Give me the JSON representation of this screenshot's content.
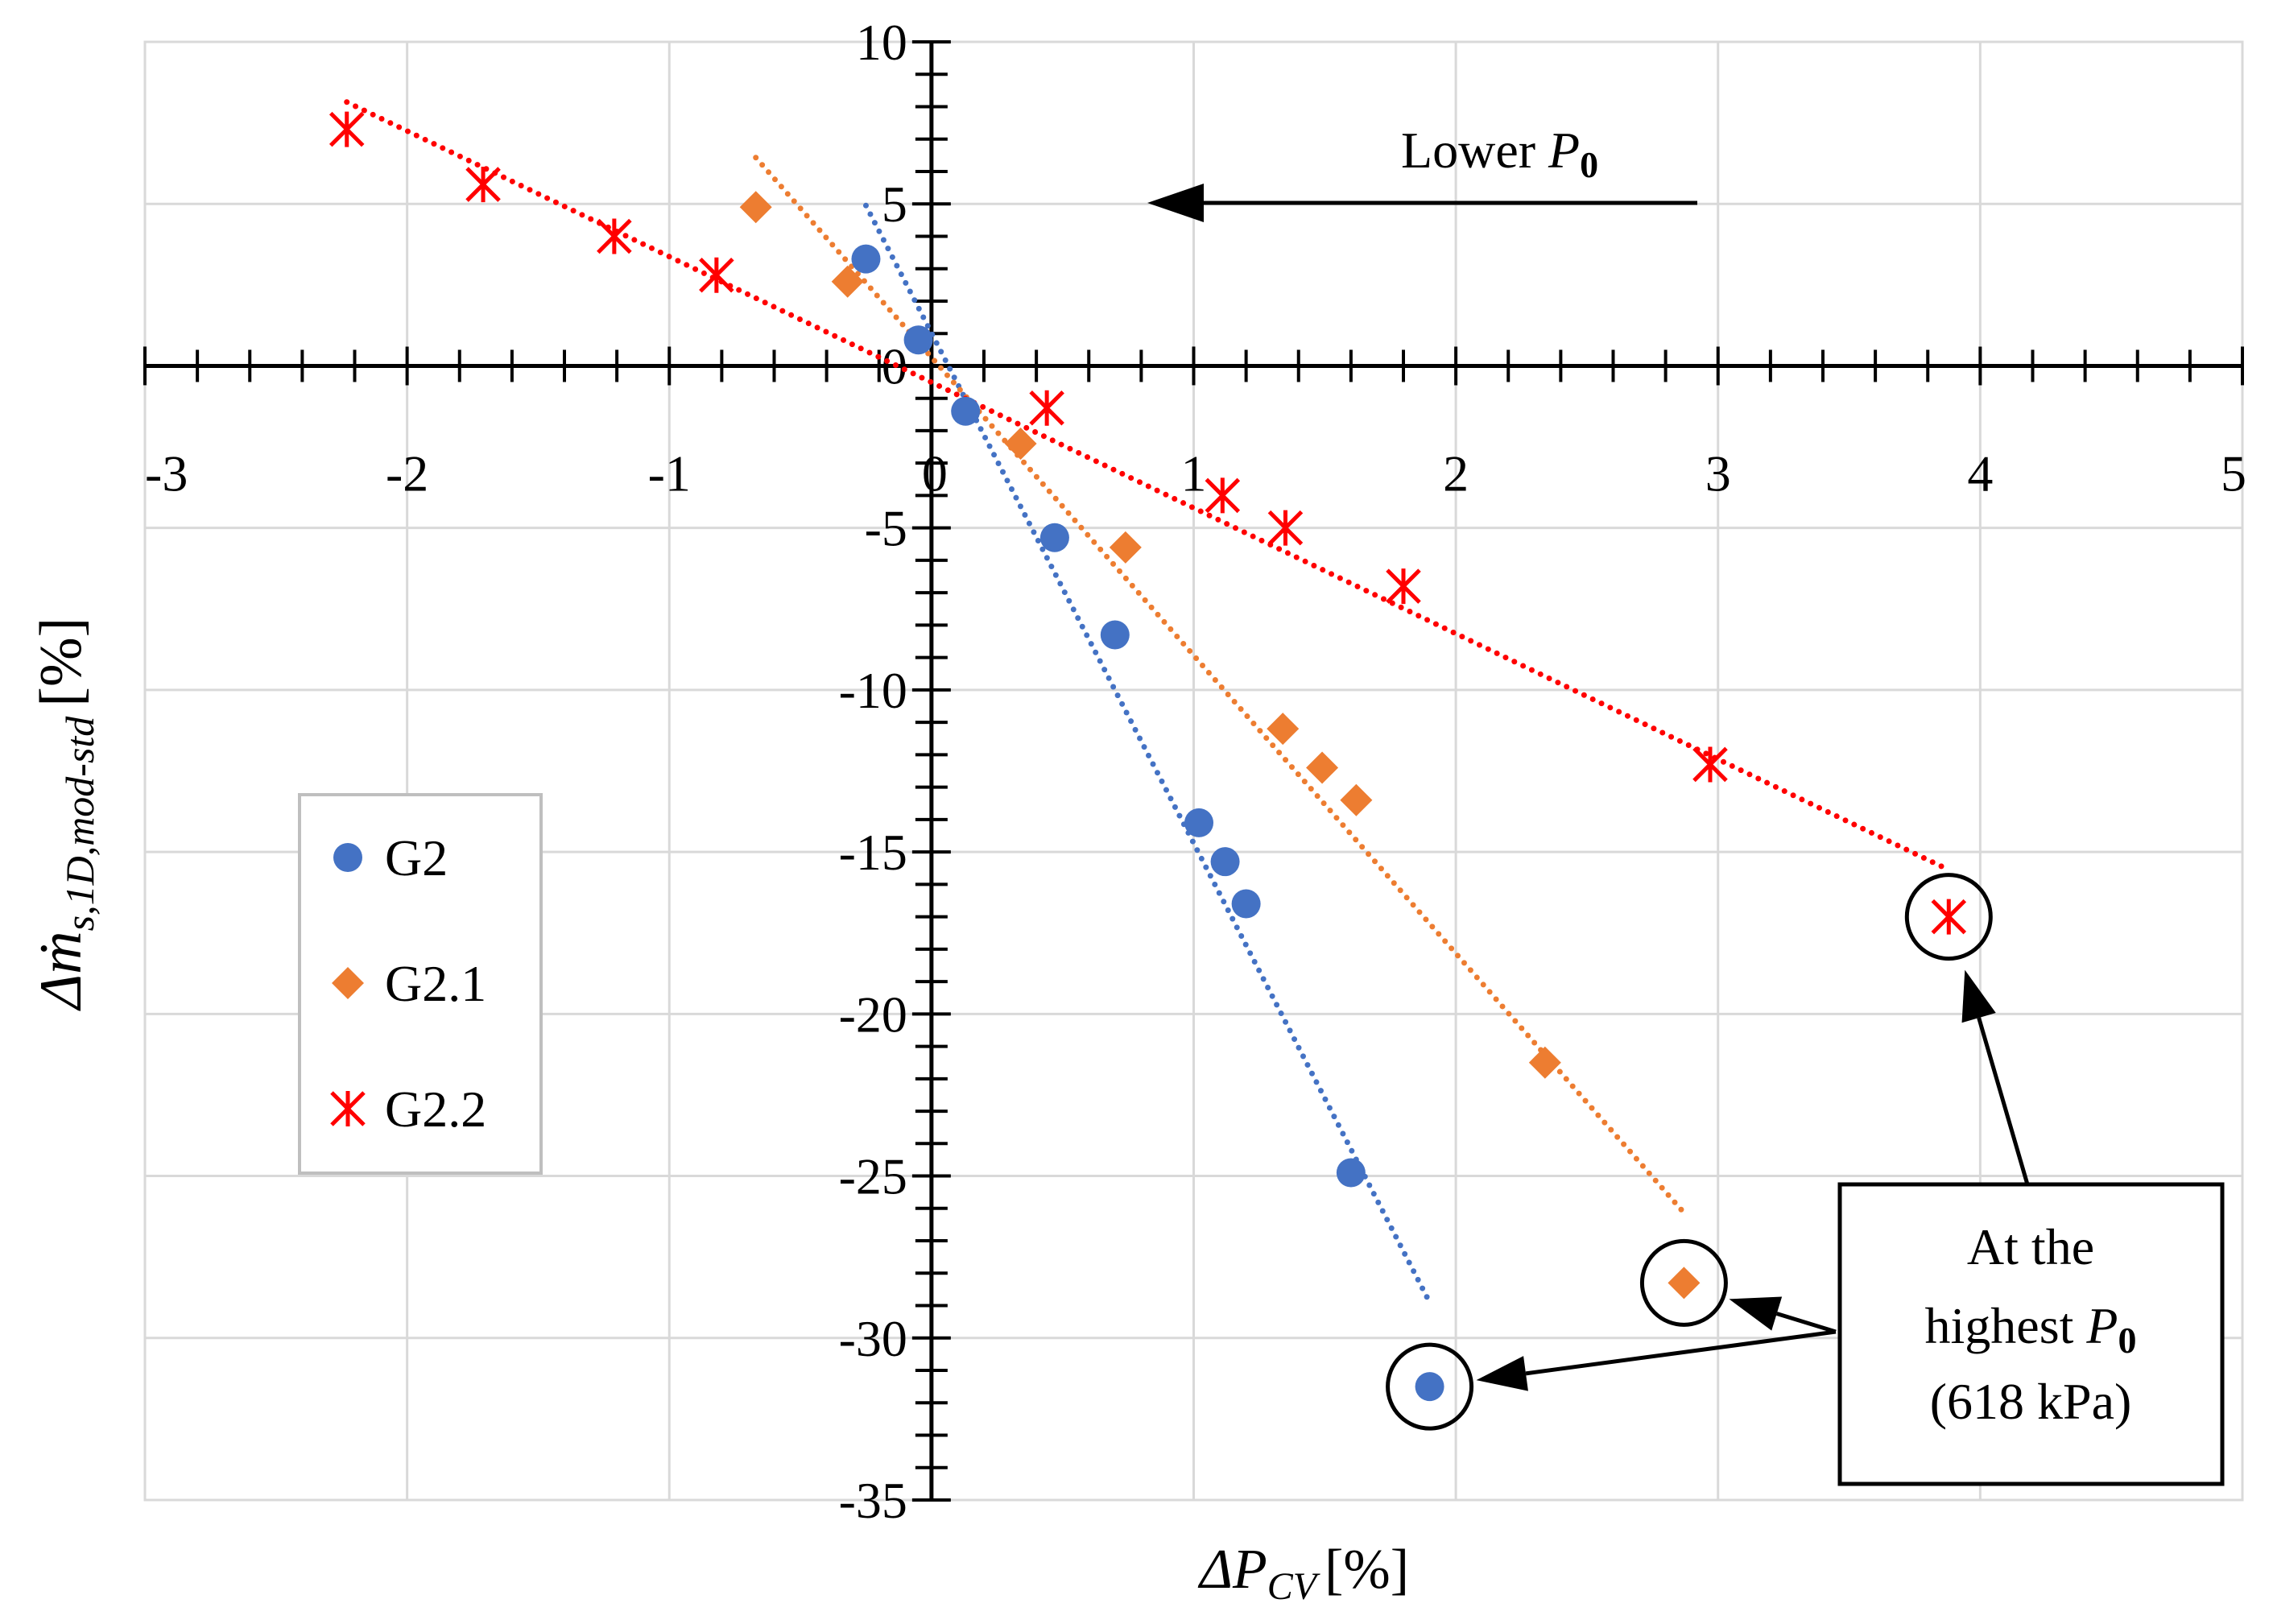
{
  "chart_data": {
    "type": "scatter",
    "title": "",
    "xlabel": {
      "main": "ΔP",
      "sub": "CV",
      "unit": "[%]"
    },
    "ylabel": {
      "main": "Δṁ",
      "sub": "s,1D,mod-std",
      "unit": "[%]"
    },
    "xlim": [
      -3,
      5
    ],
    "ylim": [
      -35,
      10
    ],
    "x_major_step": 1,
    "y_major_step": 5,
    "x_minor_step": 0.2,
    "y_minor_step": 1,
    "grid": true,
    "x_tick_labels": [
      "-3",
      "-2",
      "-1",
      "0",
      "1",
      "2",
      "3",
      "4",
      "5"
    ],
    "y_tick_labels": [
      "10",
      "5",
      "0",
      "-5",
      "-10",
      "-15",
      "-20",
      "-25",
      "-30",
      "-35"
    ],
    "legend_position": "left",
    "series": [
      {
        "name": "G2",
        "marker": "circle",
        "color": "#4472C4",
        "trendline": "dotted linear",
        "points": [
          [
            -0.25,
            3.3
          ],
          [
            -0.05,
            0.8
          ],
          [
            0.13,
            -1.4
          ],
          [
            0.47,
            -5.3
          ],
          [
            0.7,
            -8.3
          ],
          [
            1.02,
            -14.1
          ],
          [
            1.12,
            -15.3
          ],
          [
            1.2,
            -16.6
          ],
          [
            1.6,
            -24.9
          ],
          [
            1.9,
            -31.5
          ]
        ]
      },
      {
        "name": "G2.1",
        "marker": "diamond",
        "color": "#ED7D31",
        "trendline": "dotted linear",
        "points": [
          [
            -0.67,
            4.9
          ],
          [
            -0.32,
            2.6
          ],
          [
            0.34,
            -2.4
          ],
          [
            0.74,
            -5.6
          ],
          [
            1.34,
            -11.2
          ],
          [
            1.49,
            -12.4
          ],
          [
            1.62,
            -13.4
          ],
          [
            2.34,
            -21.5
          ],
          [
            2.87,
            -28.3
          ]
        ]
      },
      {
        "name": "G2.2",
        "marker": "star",
        "color": "#FF0000",
        "trendline": "dotted linear",
        "points": [
          [
            -2.23,
            7.3
          ],
          [
            -1.71,
            5.6
          ],
          [
            -1.21,
            4.0
          ],
          [
            -0.82,
            2.8
          ],
          [
            0.44,
            -1.3
          ],
          [
            1.11,
            -4.0
          ],
          [
            1.35,
            -5.0
          ],
          [
            1.8,
            -6.8
          ],
          [
            2.97,
            -12.3
          ],
          [
            3.88,
            -17.0
          ]
        ]
      }
    ],
    "annotations": {
      "lower": {
        "prefix": "Lower ",
        "sym": "P",
        "sub": "0"
      },
      "box": {
        "line1": "At the",
        "line2_prefix": "highest ",
        "sym": "P",
        "sub": "0",
        "line3": "(618 kPa)"
      }
    }
  }
}
